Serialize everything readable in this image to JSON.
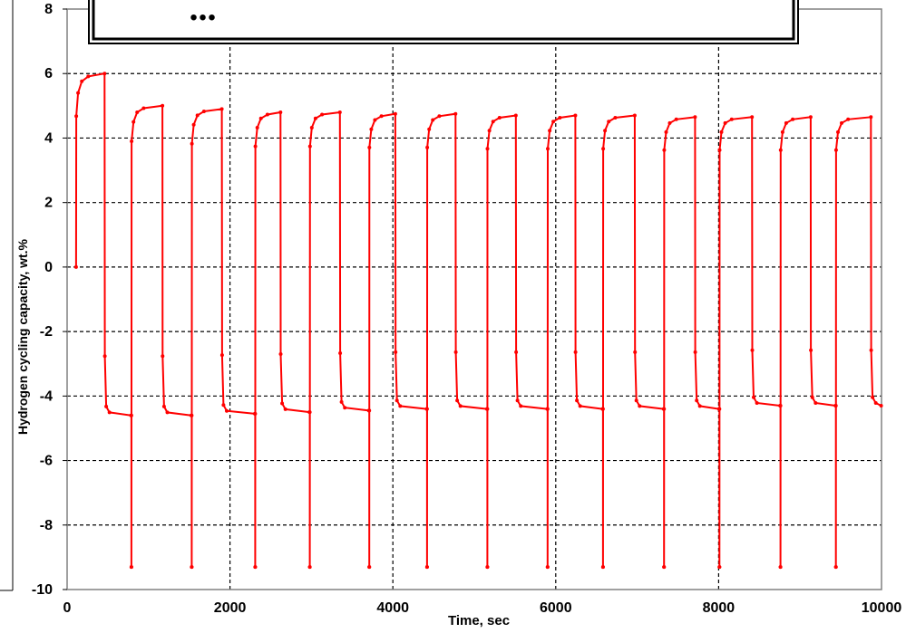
{
  "chart_data": {
    "type": "line",
    "title": "",
    "xlabel": "Time, sec",
    "ylabel": "Hydrogen cycling capacity, wt.%",
    "xlim": [
      0,
      10000
    ],
    "ylim": [
      -10,
      8
    ],
    "xticks": [
      0,
      2000,
      4000,
      6000,
      8000,
      10000
    ],
    "yticks": [
      -10,
      -8,
      -6,
      -4,
      -2,
      0,
      2,
      4,
      6,
      8
    ],
    "grid": true,
    "series_color": "#ff0000",
    "cycles": [
      {
        "abs_start": 110,
        "abs_end": 460,
        "abs_max": 6.0,
        "des_end": 790,
        "des_min": -4.6
      },
      {
        "abs_start": 790,
        "abs_end": 1170,
        "abs_max": 5.0,
        "des_end": 1530,
        "des_min": -4.6
      },
      {
        "abs_start": 1530,
        "abs_end": 1900,
        "abs_max": 4.9,
        "des_end": 2310,
        "des_min": -4.55
      },
      {
        "abs_start": 2310,
        "abs_end": 2620,
        "abs_max": 4.8,
        "des_end": 2980,
        "des_min": -4.5
      },
      {
        "abs_start": 2980,
        "abs_end": 3350,
        "abs_max": 4.8,
        "des_end": 3710,
        "des_min": -4.45
      },
      {
        "abs_start": 3710,
        "abs_end": 4030,
        "abs_max": 4.75,
        "des_end": 4420,
        "des_min": -4.4
      },
      {
        "abs_start": 4420,
        "abs_end": 4770,
        "abs_max": 4.75,
        "des_end": 5160,
        "des_min": -4.4
      },
      {
        "abs_start": 5160,
        "abs_end": 5510,
        "abs_max": 4.7,
        "des_end": 5900,
        "des_min": -4.4
      },
      {
        "abs_start": 5900,
        "abs_end": 6240,
        "abs_max": 4.7,
        "des_end": 6580,
        "des_min": -4.4
      },
      {
        "abs_start": 6580,
        "abs_end": 6970,
        "abs_max": 4.7,
        "des_end": 7330,
        "des_min": -4.4
      },
      {
        "abs_start": 7330,
        "abs_end": 7710,
        "abs_max": 4.65,
        "des_end": 8010,
        "des_min": -4.4
      },
      {
        "abs_start": 8010,
        "abs_end": 8410,
        "abs_max": 4.65,
        "des_end": 8760,
        "des_min": -4.3
      },
      {
        "abs_start": 8760,
        "abs_end": 9130,
        "abs_max": 4.65,
        "des_end": 9440,
        "des_min": -4.3
      },
      {
        "abs_start": 9440,
        "abs_end": 9870,
        "abs_max": 4.65,
        "des_end": 10000,
        "des_min": -4.3
      }
    ],
    "desorption_spike_min": -9.3
  },
  "header_box": {
    "text": "..."
  }
}
